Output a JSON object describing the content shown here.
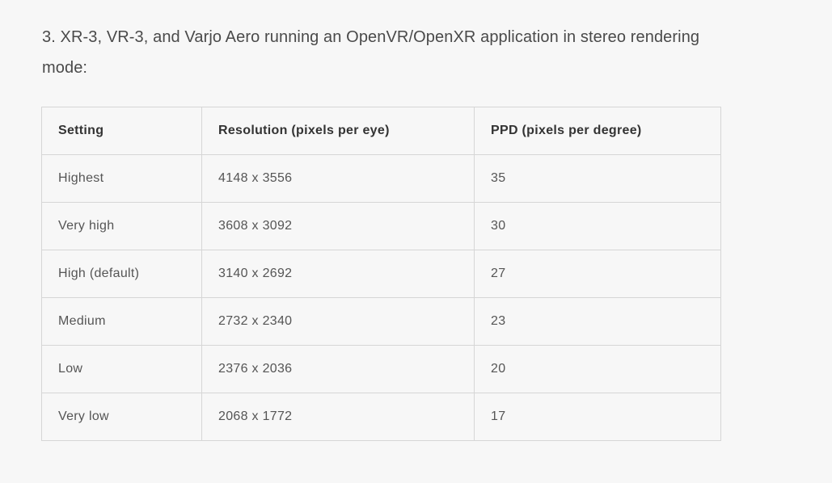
{
  "intro_text": "3. XR-3, VR-3, and Varjo Aero running an OpenVR/OpenXR application in stereo rendering mode:",
  "table": {
    "headers": [
      "Setting",
      "Resolution (pixels per eye)",
      "PPD (pixels per degree)"
    ],
    "rows": [
      [
        "Highest",
        "4148 x 3556",
        "35"
      ],
      [
        "Very high",
        "3608 x 3092",
        "30"
      ],
      [
        "High (default)",
        "3140 x 2692",
        "27"
      ],
      [
        "Medium",
        "2732 x 2340",
        "23"
      ],
      [
        "Low",
        "2376 x 2036",
        "20"
      ],
      [
        "Very low",
        "2068 x 1772",
        "17"
      ]
    ]
  }
}
